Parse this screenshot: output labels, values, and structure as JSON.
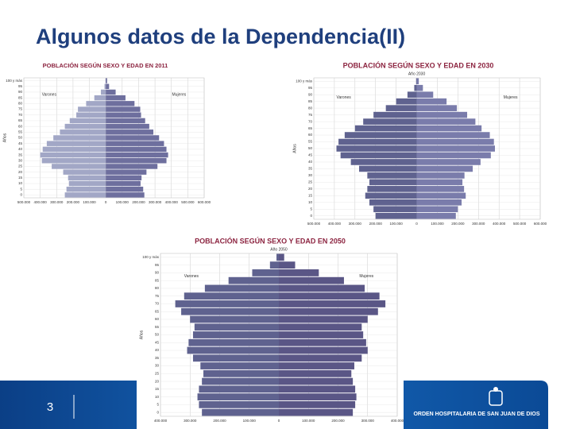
{
  "slide": {
    "title": "Algunos datos de la Dependencia(II)",
    "page_number": "3",
    "footer": "ORDEN HOSPITALARIA DE SAN JUAN DE DIOS"
  },
  "chart_data": [
    {
      "type": "pyramid",
      "title": "POBLACIÓN SEGÚN SEXO Y EDAD EN 2011",
      "y_label": "Años",
      "categories": [
        "0",
        "5",
        "10",
        "15",
        "20",
        "25",
        "30",
        "35",
        "40",
        "45",
        "50",
        "55",
        "60",
        "65",
        "70",
        "75",
        "80",
        "85",
        "90",
        "95",
        "100 y más"
      ],
      "series": [
        {
          "name": "Varones",
          "color": "#a2a7c6",
          "values": [
            250000,
            240000,
            225000,
            230000,
            260000,
            330000,
            390000,
            400000,
            385000,
            360000,
            320000,
            280000,
            250000,
            220000,
            180000,
            170000,
            120000,
            70000,
            30000,
            8000,
            2000
          ]
        },
        {
          "name": "Mujeres",
          "color": "#6e6f9e",
          "values": [
            235000,
            228000,
            212000,
            218000,
            248000,
            315000,
            370000,
            380000,
            370000,
            355000,
            325000,
            290000,
            265000,
            240000,
            215000,
            210000,
            175000,
            120000,
            60000,
            20000,
            8000
          ]
        }
      ],
      "left_xlim": [
        0,
        500000
      ],
      "right_xlim": [
        0,
        600000
      ],
      "left_xticks": [
        {
          "value": 500000,
          "label": "500.000"
        },
        {
          "value": 400000,
          "label": "400.000"
        },
        {
          "value": 300000,
          "label": "300.000"
        },
        {
          "value": 200000,
          "label": "200.000"
        },
        {
          "value": 100000,
          "label": "100.000"
        }
      ],
      "right_xticks": [
        0,
        {
          "value": 100000,
          "label": "100.000"
        },
        {
          "value": 200000,
          "label": "200.000"
        },
        {
          "value": 300000,
          "label": "300.000"
        },
        {
          "value": 400000,
          "label": "400.000"
        },
        {
          "value": 500000,
          "label": "500.000"
        },
        {
          "value": 600000,
          "label": "600.000"
        }
      ],
      "grid": true
    },
    {
      "type": "pyramid",
      "title": "POBLACIÓN SEGÚN SEXO Y EDAD EN 2030",
      "y_label": "Años",
      "annotation": "Año 2030",
      "categories": [
        "0",
        "5",
        "10",
        "15",
        "20",
        "25",
        "30",
        "35",
        "40",
        "45",
        "50",
        "55",
        "60",
        "65",
        "70",
        "75",
        "80",
        "85",
        "90",
        "95",
        "100 y más"
      ],
      "series": [
        {
          "name": "Varones",
          "color": "#5f628f",
          "values": [
            200000,
            210000,
            230000,
            250000,
            240000,
            230000,
            240000,
            280000,
            320000,
            370000,
            390000,
            380000,
            350000,
            300000,
            260000,
            210000,
            150000,
            100000,
            45000,
            12000,
            3000
          ]
        },
        {
          "name": "Mujeres",
          "color": "#7a7cab",
          "values": [
            190000,
            200000,
            218000,
            238000,
            230000,
            222000,
            232000,
            272000,
            310000,
            360000,
            380000,
            375000,
            355000,
            315000,
            285000,
            245000,
            195000,
            145000,
            80000,
            30000,
            10000
          ]
        }
      ],
      "left_xlim": [
        0,
        500000
      ],
      "right_xlim": [
        0,
        600000
      ],
      "left_xticks": [
        {
          "value": 500000,
          "label": "500.000"
        },
        {
          "value": 400000,
          "label": "400.000"
        },
        {
          "value": 300000,
          "label": "300.000"
        },
        {
          "value": 200000,
          "label": "200.000"
        },
        {
          "value": 100000,
          "label": "100.000"
        }
      ],
      "right_xticks": [
        0,
        {
          "value": 100000,
          "label": "100.000"
        },
        {
          "value": 200000,
          "label": "200.000"
        },
        {
          "value": 300000,
          "label": "300.000"
        },
        {
          "value": 400000,
          "label": "400.000"
        },
        {
          "value": 500000,
          "label": "500.000"
        },
        {
          "value": 600000,
          "label": "600.000"
        }
      ],
      "grid": true
    },
    {
      "type": "pyramid",
      "title": "POBLACIÓN SEGÚN SEXO Y EDAD EN 2050",
      "y_label": "Años",
      "annotation": "Año 2050",
      "categories": [
        "0",
        "5",
        "10",
        "15",
        "20",
        "25",
        "30",
        "35",
        "40",
        "45",
        "50",
        "55",
        "60",
        "65",
        "70",
        "75",
        "80",
        "85",
        "90",
        "95",
        "100 y más"
      ],
      "series": [
        {
          "name": "Varones",
          "color": "#5f628f",
          "values": [
            260000,
            270000,
            275000,
            270000,
            260000,
            255000,
            265000,
            290000,
            310000,
            305000,
            290000,
            285000,
            300000,
            330000,
            350000,
            320000,
            250000,
            170000,
            90000,
            30000,
            8000
          ]
        },
        {
          "name": "Mujeres",
          "color": "#5a5686",
          "values": [
            250000,
            258000,
            262000,
            258000,
            250000,
            245000,
            255000,
            280000,
            300000,
            295000,
            285000,
            280000,
            300000,
            335000,
            360000,
            340000,
            290000,
            220000,
            135000,
            55000,
            18000
          ]
        }
      ],
      "left_xlim": [
        0,
        400000
      ],
      "right_xlim": [
        0,
        400000
      ],
      "left_xticks": [
        {
          "value": 400000,
          "label": "400.000"
        },
        {
          "value": 300000,
          "label": "300.000"
        },
        {
          "value": 200000,
          "label": "200.000"
        },
        {
          "value": 100000,
          "label": "100.000"
        }
      ],
      "right_xticks": [
        0,
        {
          "value": 100000,
          "label": "100.000"
        },
        {
          "value": 200000,
          "label": "200.000"
        },
        {
          "value": 300000,
          "label": "300.000"
        },
        {
          "value": 400000,
          "label": "400.000"
        }
      ],
      "grid": true
    }
  ]
}
